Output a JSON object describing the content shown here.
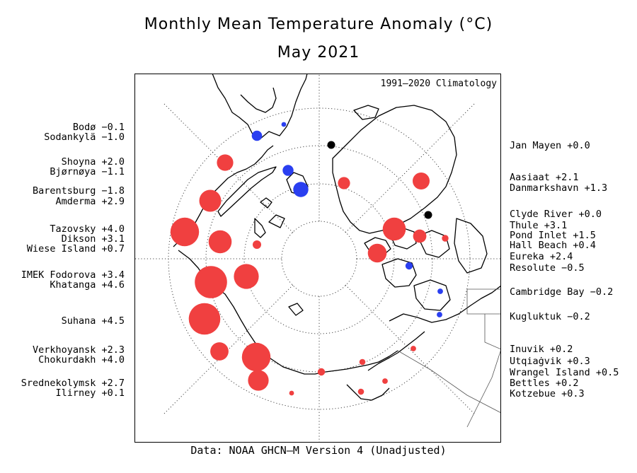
{
  "title": "Monthly Mean Temperature Anomaly (°C)",
  "subtitle": "May 2021",
  "climatology": "1991–2020 Climatology",
  "footer": "Data: NOAA GHCN–M Version 4 (Unadjusted)",
  "colors": {
    "warm": "#f04040",
    "cool": "#2a3ff0",
    "neutral": "#000000"
  },
  "left_labels": [
    "Bodø −0.1",
    "Sodankylä −1.0",
    "Shoyna +2.0",
    "Bjørnøya −1.1",
    "Barentsburg −1.8",
    "Amderma +2.9",
    "Tazovsky +4.0",
    "Dikson +3.1",
    "Wiese Island +0.7",
    "IMEK Fodorova +3.4",
    "Khatanga +4.6",
    "Suhana +4.5",
    "Verkhoyansk +2.3",
    "Chokurdakh +4.0",
    "Srednekolymsk +2.7",
    "Ilirney +0.1"
  ],
  "right_labels": [
    "Jan Mayen +0.0",
    "Aasiaat +2.1",
    "Danmarkshavn +1.3",
    "Clyde River +0.0",
    "Thule +3.1",
    "Pond Inlet +1.5",
    "Hall Beach +0.4",
    "Eureka +2.4",
    "Resolute −0.5",
    "Cambridge Bay −0.2",
    "Kugluktuk −0.2",
    "Inuvik +0.2",
    "Utqiaġvik +0.3",
    "Wrangel Island +0.5",
    "Bettles +0.2",
    "Kotzebue +0.3"
  ],
  "stations": [
    {
      "name": "Bodø",
      "anomaly": -0.1
    },
    {
      "name": "Sodankylä",
      "anomaly": -1.0
    },
    {
      "name": "Shoyna",
      "anomaly": 2.0
    },
    {
      "name": "Bjørnøya",
      "anomaly": -1.1
    },
    {
      "name": "Barentsburg",
      "anomaly": -1.8
    },
    {
      "name": "Amderma",
      "anomaly": 2.9
    },
    {
      "name": "Tazovsky",
      "anomaly": 4.0
    },
    {
      "name": "Dikson",
      "anomaly": 3.1
    },
    {
      "name": "Wiese Island",
      "anomaly": 0.7
    },
    {
      "name": "IMEK Fodorova",
      "anomaly": 3.4
    },
    {
      "name": "Khatanga",
      "anomaly": 4.6
    },
    {
      "name": "Suhana",
      "anomaly": 4.5
    },
    {
      "name": "Verkhoyansk",
      "anomaly": 2.3
    },
    {
      "name": "Chokurdakh",
      "anomaly": 4.0
    },
    {
      "name": "Srednekolymsk",
      "anomaly": 2.7
    },
    {
      "name": "Ilirney",
      "anomaly": 0.1
    },
    {
      "name": "Jan Mayen",
      "anomaly": 0.0
    },
    {
      "name": "Aasiaat",
      "anomaly": 2.1
    },
    {
      "name": "Danmarkshavn",
      "anomaly": 1.3
    },
    {
      "name": "Clyde River",
      "anomaly": 0.0
    },
    {
      "name": "Thule",
      "anomaly": 3.1
    },
    {
      "name": "Pond Inlet",
      "anomaly": 1.5
    },
    {
      "name": "Hall Beach",
      "anomaly": 0.4
    },
    {
      "name": "Eureka",
      "anomaly": 2.4
    },
    {
      "name": "Resolute",
      "anomaly": -0.5
    },
    {
      "name": "Cambridge Bay",
      "anomaly": -0.2
    },
    {
      "name": "Kugluktuk",
      "anomaly": -0.2
    },
    {
      "name": "Inuvik",
      "anomaly": 0.2
    },
    {
      "name": "Utqiaġvik",
      "anomaly": 0.3
    },
    {
      "name": "Wrangel Island",
      "anomaly": 0.5
    },
    {
      "name": "Bettles",
      "anomaly": 0.2
    },
    {
      "name": "Kotzebue",
      "anomaly": 0.3
    }
  ]
}
